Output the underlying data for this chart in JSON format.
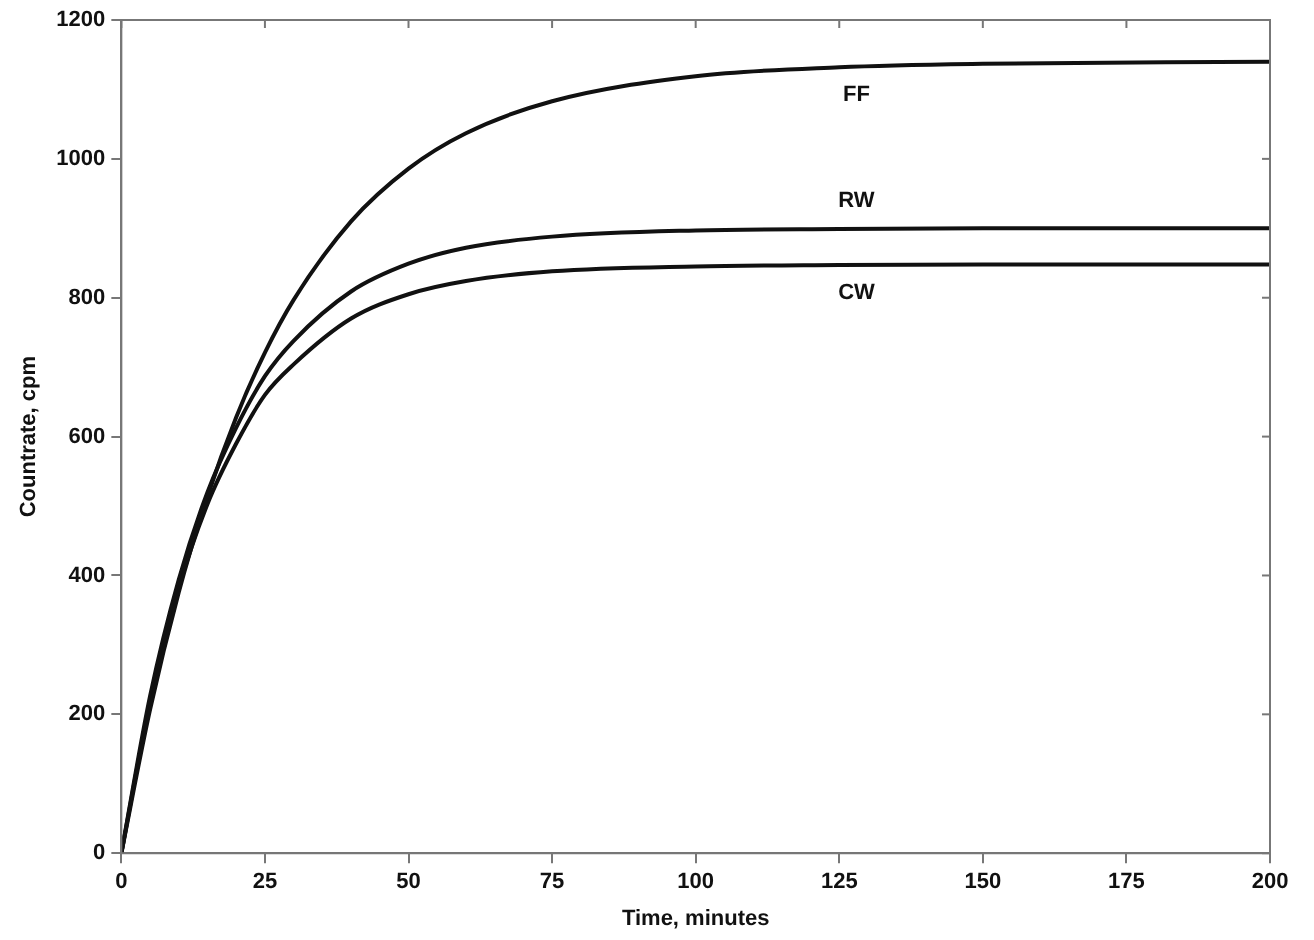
{
  "chart_data": {
    "type": "line",
    "xlabel": "Time, minutes",
    "ylabel": "Countrate, cpm",
    "x": [
      0,
      5,
      10,
      15,
      20,
      25,
      30,
      40,
      50,
      60,
      75,
      100,
      125,
      150,
      200
    ],
    "series": [
      {
        "name": "FF",
        "color": "#111111",
        "values": [
          0,
          207,
          376,
          514,
          628,
          721,
          797,
          910,
          986,
          1037,
          1083,
          1119,
          1132,
          1137,
          1140
        ]
      },
      {
        "name": "RW",
        "color": "#111111",
        "values": [
          0,
          226,
          394,
          520,
          613,
          687,
          738,
          809,
          849,
          872,
          888,
          897,
          899,
          900,
          900
        ]
      },
      {
        "name": "CW",
        "color": "#111111",
        "values": [
          0,
          218,
          382,
          503,
          590,
          660,
          704,
          770,
          805,
          824,
          838,
          845,
          847,
          848,
          848
        ]
      }
    ],
    "xlim": [
      0,
      200
    ],
    "xticks": [
      0,
      25,
      50,
      75,
      100,
      125,
      150,
      175,
      200
    ],
    "ylim": [
      0,
      1200
    ],
    "yticks": [
      0,
      200,
      400,
      600,
      800,
      1000,
      1200
    ],
    "grid": false,
    "legend": false,
    "marker": "none",
    "line_style": "solid"
  }
}
